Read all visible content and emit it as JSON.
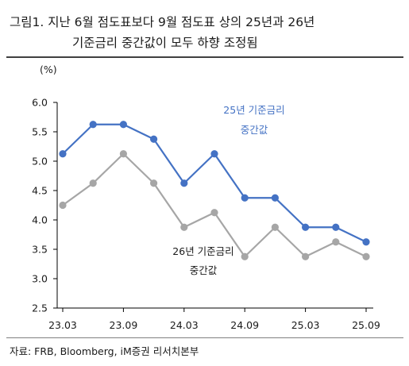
{
  "figure": {
    "title_line1": "그림1.  지난  6월  점도표보다  9월  점도표  상의  25년과  26년",
    "title_line2": "기준금리 중간값이 모두 하향 조정됨",
    "source": "자료: FRB, Bloomberg, iM증권 리서치본부"
  },
  "chart_data": {
    "type": "line",
    "title": "",
    "ylabel": "(%)",
    "xlabel": "",
    "ylim": [
      2.5,
      6.0
    ],
    "yticks": [
      "2.5",
      "3.0",
      "3.5",
      "4.0",
      "4.5",
      "5.0",
      "5.5",
      "6.0"
    ],
    "x": [
      "23.03",
      "23.06",
      "23.09",
      "23.12",
      "24.03",
      "24.06",
      "24.09",
      "24.12",
      "25.03",
      "25.06",
      "25.09"
    ],
    "xtick_labels": [
      "23.03",
      "23.09",
      "24.03",
      "24.09",
      "25.03",
      "25.09"
    ],
    "grid": false,
    "series": [
      {
        "name": "25년 기준금리 중간값",
        "label_line1": "25년 기준금리",
        "label_line2": "중간값",
        "color": "#4472c4",
        "values": [
          5.125,
          5.625,
          5.625,
          5.375,
          4.625,
          5.125,
          4.375,
          4.375,
          3.875,
          3.875,
          3.625
        ]
      },
      {
        "name": "26년 기준금리 중간값",
        "label_line1": "26년 기준금리",
        "label_line2": "중간값",
        "color": "#a6a6a6",
        "values": [
          4.25,
          4.625,
          5.125,
          4.625,
          3.875,
          4.125,
          3.375,
          3.875,
          3.375,
          3.625,
          3.375
        ]
      }
    ]
  }
}
